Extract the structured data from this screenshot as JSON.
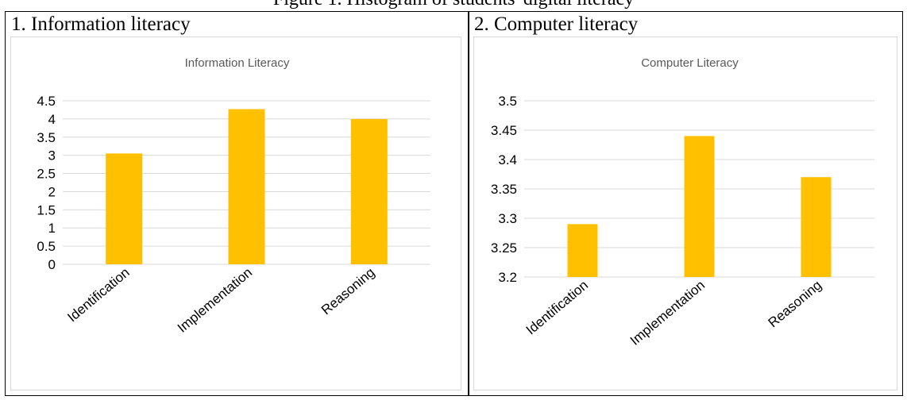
{
  "caption": "Figure 1. Histogram of students' digital literacy",
  "panels": [
    {
      "label": "1. Information literacy"
    },
    {
      "label": "2. Computer literacy"
    }
  ],
  "colors": {
    "bar": "#FFC000",
    "grid": "#d9d9d9",
    "text": "#595959"
  },
  "chart_data": [
    {
      "type": "bar",
      "title": "Information Literacy",
      "categories": [
        "Identification",
        "Implementation",
        "Reasoning"
      ],
      "values": [
        3.05,
        4.27,
        4.0
      ],
      "ylim": [
        0,
        4.5
      ],
      "yticks": [
        "0",
        "0.5",
        "1",
        "1.5",
        "2",
        "2.5",
        "3",
        "3.5",
        "4",
        "4.5"
      ],
      "grid": true
    },
    {
      "type": "bar",
      "title": "Computer Literacy",
      "categories": [
        "Identification",
        "Implementation",
        "Reasoning"
      ],
      "values": [
        3.29,
        3.44,
        3.37
      ],
      "ylim": [
        3.2,
        3.5
      ],
      "yticks": [
        "3.2",
        "3.25",
        "3.3",
        "3.35",
        "3.4",
        "3.45",
        "3.5"
      ],
      "grid": true
    }
  ]
}
